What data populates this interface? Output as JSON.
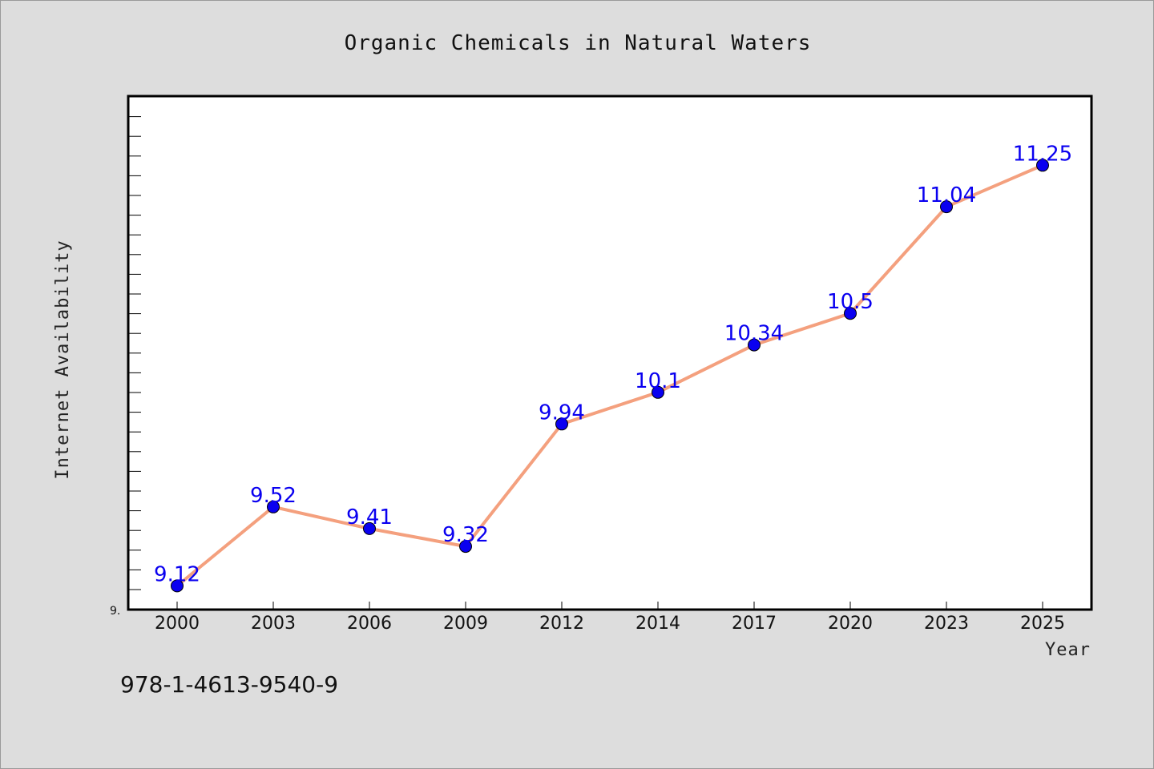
{
  "chart_data": {
    "type": "line",
    "title": "Organic Chemicals in Natural Waters",
    "xlabel": "Year",
    "ylabel": "Internet Availability",
    "categories": [
      "2000",
      "2003",
      "2006",
      "2009",
      "2012",
      "2014",
      "2017",
      "2020",
      "2023",
      "2025"
    ],
    "series": [
      {
        "values": [
          9.12,
          9.52,
          9.41,
          9.32,
          9.94,
          10.1,
          10.34,
          10.5,
          11.04,
          11.25
        ]
      }
    ],
    "data_labels": [
      "9.12",
      "9.52",
      "9.41",
      "9.32",
      "9.94",
      "10.1",
      "10.34",
      "10.5",
      "11.04",
      "11.25"
    ],
    "ytick_labels": [
      "9."
    ],
    "ylim": [
      9.0,
      11.6
    ],
    "grid": false,
    "line_color": "#f4a07e",
    "marker_color": "#0a00f0",
    "label_color": "#0a00f0",
    "plot_background": "#ffffff",
    "figure_background": "#dddddd"
  },
  "footer": {
    "isbn": "978-1-4613-9540-9"
  }
}
